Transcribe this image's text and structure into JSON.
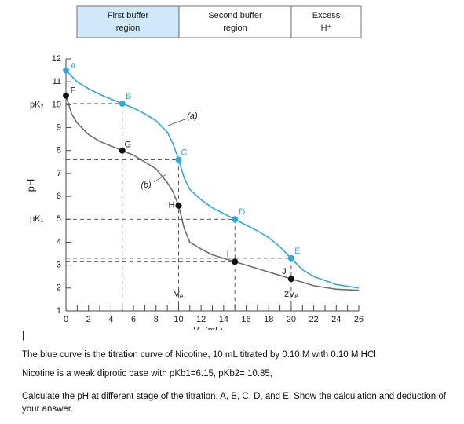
{
  "chart_data": {
    "type": "line",
    "regions": [
      {
        "lines": [
          "First buffer",
          "region"
        ]
      },
      {
        "lines": [
          "Second buffer",
          "region"
        ]
      },
      {
        "lines": [
          "Excess",
          "H⁺"
        ]
      }
    ],
    "y_label": "pH",
    "x_label": {
      "main": "V",
      "sub": "a",
      "rest": " (mL)"
    },
    "xlim": [
      0,
      26
    ],
    "ylim": [
      1,
      12
    ],
    "xticks": [
      0,
      2,
      4,
      6,
      8,
      10,
      12,
      14,
      16,
      18,
      20,
      22,
      24,
      26
    ],
    "xminorticks": [
      1,
      3,
      5,
      7,
      9,
      11,
      13,
      15,
      17,
      19,
      21,
      23,
      25
    ],
    "yticks": [
      1,
      2,
      3,
      4,
      5,
      6,
      7,
      8,
      9,
      10,
      11,
      12
    ],
    "y_annotations": [
      {
        "label": "pK₂",
        "value": 10
      },
      {
        "label": "pK₁",
        "value": 5
      }
    ],
    "series": [
      {
        "name": "(a)",
        "color": "#29abe2",
        "x": [
          0,
          1,
          2,
          3,
          4,
          5,
          6,
          7,
          8,
          9,
          9.5,
          10,
          10.5,
          11,
          12,
          13,
          14,
          15,
          16,
          17,
          18,
          19,
          20,
          21,
          22,
          24,
          26
        ],
        "values": [
          11.5,
          11.0,
          10.7,
          10.45,
          10.25,
          10.05,
          9.85,
          9.6,
          9.3,
          8.8,
          8.3,
          7.6,
          6.8,
          6.3,
          5.85,
          5.5,
          5.25,
          5.0,
          4.75,
          4.5,
          4.2,
          3.8,
          3.3,
          2.8,
          2.5,
          2.15,
          2.0
        ]
      },
      {
        "name": "(b)",
        "color": "#6d6d6d",
        "x": [
          0,
          0.5,
          1,
          2,
          3,
          4,
          5,
          6,
          7,
          8,
          9,
          9.5,
          10,
          10.5,
          11,
          12,
          13,
          14,
          15,
          16,
          17,
          18,
          19,
          20,
          21,
          22,
          24,
          26
        ],
        "values": [
          10.4,
          9.6,
          9.2,
          8.7,
          8.4,
          8.2,
          8.0,
          7.8,
          7.5,
          7.2,
          6.6,
          6.2,
          5.6,
          4.6,
          4.0,
          3.7,
          3.45,
          3.3,
          3.15,
          3.0,
          2.85,
          2.7,
          2.55,
          2.4,
          2.25,
          2.1,
          1.95,
          1.9
        ]
      }
    ],
    "points": [
      {
        "label": "A",
        "x": 0,
        "y": 11.5,
        "color": "#29abe2"
      },
      {
        "label": "B",
        "x": 5,
        "y": 10.05,
        "color": "#29abe2"
      },
      {
        "label": "C",
        "x": 10,
        "y": 7.6,
        "color": "#29abe2"
      },
      {
        "label": "D",
        "x": 15,
        "y": 5.0,
        "color": "#29abe2"
      },
      {
        "label": "E",
        "x": 20,
        "y": 3.3,
        "color": "#29abe2"
      },
      {
        "label": "F",
        "x": 0,
        "y": 10.4,
        "color": "#111111"
      },
      {
        "label": "G",
        "x": 5,
        "y": 8.0,
        "color": "#111111"
      },
      {
        "label": "H",
        "x": 10,
        "y": 5.6,
        "color": "#111111"
      },
      {
        "label": "I",
        "x": 15,
        "y": 3.15,
        "color": "#111111"
      },
      {
        "label": "J",
        "x": 20,
        "y": 2.4,
        "color": "#111111"
      }
    ],
    "equivalence_labels": [
      {
        "main": "V",
        "sub": "e",
        "x": 10
      },
      {
        "main": "2V",
        "sub": "e",
        "x": 20
      }
    ]
  },
  "text": {
    "cursor": "|",
    "paragraphs": [
      "The blue curve is the titration curve of Nicotine, 10 mL titrated by 0.10 M with 0.10 M HCl",
      "Nicotine is a weak diprotic base with pKb1=6.15, pKb2= 10.85,",
      "Calculate the pH at different stage of the titration, A, B, C, D, and E. Show the calculation and deduction of your answer."
    ]
  }
}
